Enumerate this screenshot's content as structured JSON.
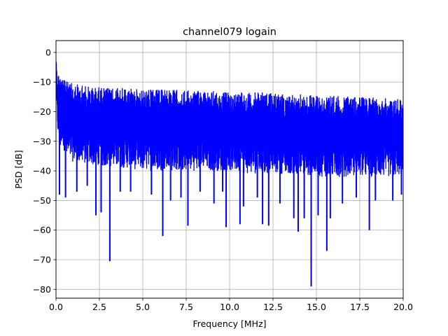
{
  "chart_data": {
    "type": "line",
    "title": "channel079 logain",
    "xlabel": "Frequency [MHz]",
    "ylabel": "PSD [dB]",
    "xlim": [
      0,
      20
    ],
    "ylim": [
      -83,
      4
    ],
    "xticks": [
      0,
      2.5,
      5,
      7.5,
      10,
      12.5,
      15,
      17.5,
      20
    ],
    "xtick_labels": [
      "0.0",
      "2.5",
      "5.0",
      "7.5",
      "10.0",
      "12.5",
      "15.0",
      "17.5",
      "20.0"
    ],
    "yticks": [
      0,
      -10,
      -20,
      -30,
      -40,
      -50,
      -60,
      -70,
      -80
    ],
    "ytick_labels": [
      "0",
      "−10",
      "−20",
      "−30",
      "−40",
      "−50",
      "−60",
      "−70",
      "−80"
    ],
    "grid": true,
    "legend": "none",
    "series": [
      {
        "color": "#0000ff",
        "envelope": {
          "x": [
            0.0,
            0.05,
            0.15,
            0.3,
            0.5,
            1.0,
            2.0,
            3.0,
            4.0,
            5.0,
            6.0,
            7.0,
            8.0,
            9.0,
            10.0,
            11.0,
            12.0,
            13.0,
            14.0,
            15.0,
            16.0,
            17.0,
            18.0,
            19.0,
            20.0
          ],
          "upper": [
            -3,
            -5,
            -7,
            -8,
            -9.5,
            -10.5,
            -11.5,
            -12,
            -12,
            -12.5,
            -12.5,
            -12.5,
            -13,
            -13,
            -13.5,
            -13.5,
            -13.5,
            -14,
            -14,
            -14.5,
            -14.5,
            -15,
            -15,
            -15.5,
            -15.5
          ],
          "lower": [
            -14,
            -25,
            -30,
            -34,
            -36,
            -37,
            -38,
            -39,
            -39,
            -40,
            -40,
            -40,
            -40,
            -40,
            -40,
            -41,
            -41,
            -41,
            -41,
            -42,
            -42,
            -42,
            -42,
            -42,
            -42
          ]
        },
        "dips": [
          {
            "x": 0.2,
            "y": -48
          },
          {
            "x": 0.55,
            "y": -49
          },
          {
            "x": 1.2,
            "y": -47
          },
          {
            "x": 1.8,
            "y": -45
          },
          {
            "x": 2.3,
            "y": -55
          },
          {
            "x": 2.6,
            "y": -54
          },
          {
            "x": 3.1,
            "y": -70.5
          },
          {
            "x": 3.7,
            "y": -47
          },
          {
            "x": 4.3,
            "y": -47
          },
          {
            "x": 5.5,
            "y": -48
          },
          {
            "x": 6.15,
            "y": -62
          },
          {
            "x": 6.6,
            "y": -50
          },
          {
            "x": 7.2,
            "y": -49
          },
          {
            "x": 7.6,
            "y": -58.5
          },
          {
            "x": 8.3,
            "y": -47
          },
          {
            "x": 9.1,
            "y": -51
          },
          {
            "x": 9.6,
            "y": -47
          },
          {
            "x": 9.8,
            "y": -59
          },
          {
            "x": 10.6,
            "y": -58
          },
          {
            "x": 10.8,
            "y": -52
          },
          {
            "x": 11.6,
            "y": -49
          },
          {
            "x": 11.9,
            "y": -58
          },
          {
            "x": 12.25,
            "y": -58.5
          },
          {
            "x": 12.9,
            "y": -51
          },
          {
            "x": 13.7,
            "y": -56
          },
          {
            "x": 13.95,
            "y": -60.5
          },
          {
            "x": 14.3,
            "y": -56
          },
          {
            "x": 14.7,
            "y": -79
          },
          {
            "x": 15.1,
            "y": -55
          },
          {
            "x": 15.6,
            "y": -67
          },
          {
            "x": 15.8,
            "y": -56
          },
          {
            "x": 16.5,
            "y": -51
          },
          {
            "x": 17.3,
            "y": -49
          },
          {
            "x": 18.05,
            "y": -60
          },
          {
            "x": 18.4,
            "y": -50
          },
          {
            "x": 19.4,
            "y": -50
          },
          {
            "x": 19.9,
            "y": -48
          }
        ]
      }
    ]
  }
}
